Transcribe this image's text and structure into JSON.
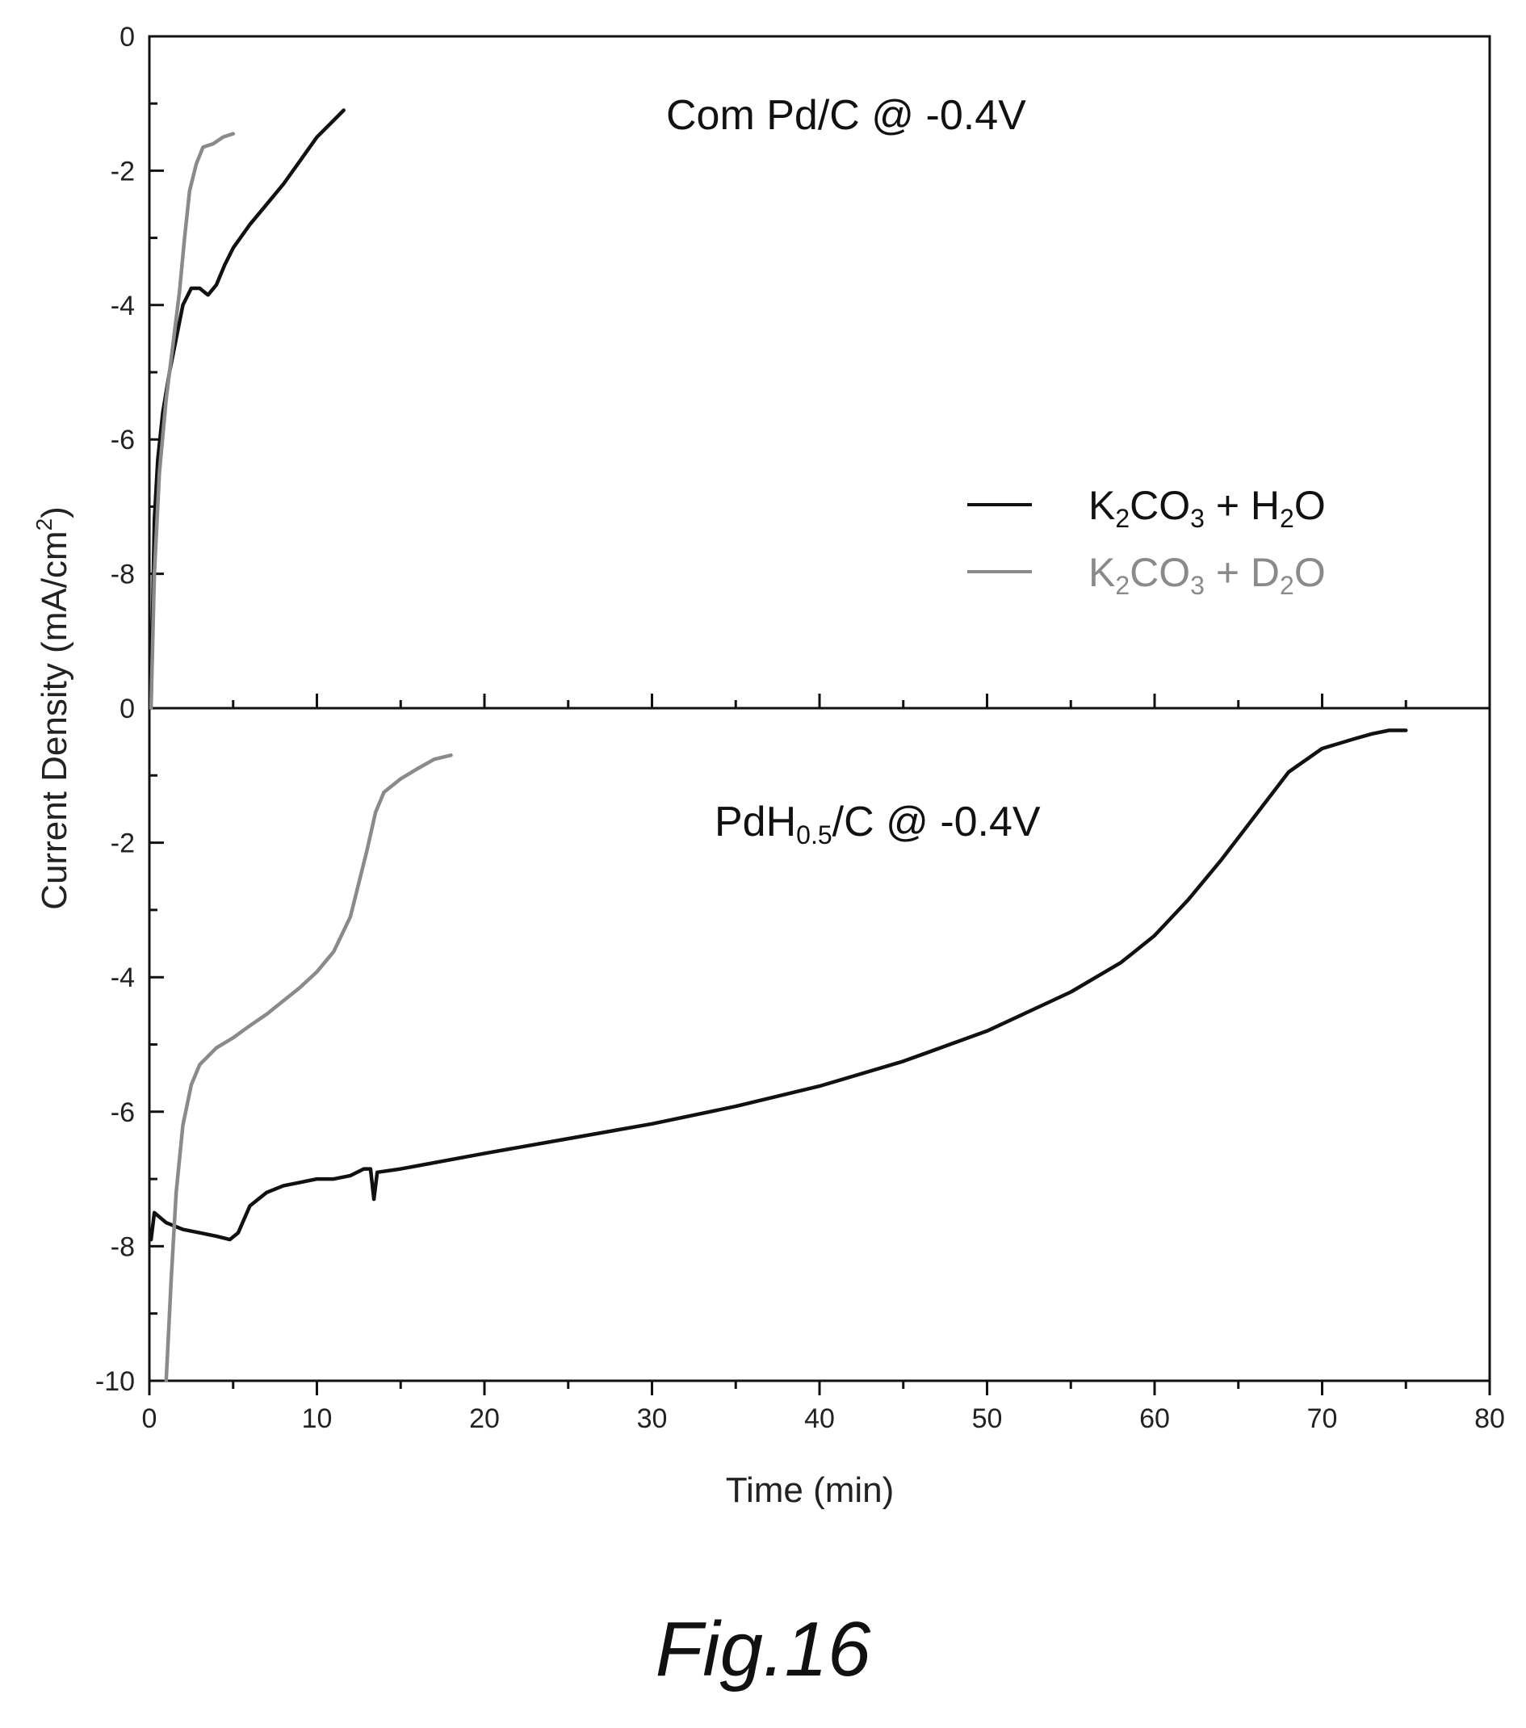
{
  "caption": "Fig.16",
  "chart_data": [
    {
      "type": "line",
      "panel": "top",
      "annotation": "Com Pd/C @ -0.4V",
      "xlim": [
        0,
        80
      ],
      "ylim": [
        -10,
        0
      ],
      "yticks": [
        0,
        -2,
        -4,
        -6,
        -8
      ],
      "legend": {
        "placement": "right",
        "entries": [
          {
            "base": "K",
            "sub1": "2",
            "mid": "CO",
            "sub2": "3",
            "tail": " + H",
            "sub3": "2",
            "end": "O",
            "color": "#111111"
          },
          {
            "base": "K",
            "sub1": "2",
            "mid": "CO",
            "sub2": "3",
            "tail": " + D",
            "sub3": "2",
            "end": "O",
            "color": "#8a8a8a"
          }
        ]
      },
      "series": [
        {
          "color": "#111111",
          "points": [
            [
              0.1,
              -9.9
            ],
            [
              0.2,
              -8.5
            ],
            [
              0.3,
              -7.2
            ],
            [
              0.5,
              -6.3
            ],
            [
              0.8,
              -5.6
            ],
            [
              1.2,
              -5.0
            ],
            [
              1.6,
              -4.5
            ],
            [
              2.0,
              -4.0
            ],
            [
              2.5,
              -3.75
            ],
            [
              3.0,
              -3.75
            ],
            [
              3.5,
              -3.85
            ],
            [
              4.0,
              -3.7
            ],
            [
              4.5,
              -3.4
            ],
            [
              5.0,
              -3.15
            ],
            [
              6.0,
              -2.8
            ],
            [
              7.0,
              -2.5
            ],
            [
              8.0,
              -2.2
            ],
            [
              9.0,
              -1.85
            ],
            [
              10.0,
              -1.5
            ],
            [
              11.0,
              -1.25
            ],
            [
              11.6,
              -1.1
            ]
          ]
        },
        {
          "color": "#8a8a8a",
          "points": [
            [
              0.1,
              -10.0
            ],
            [
              0.3,
              -8.0
            ],
            [
              0.6,
              -6.5
            ],
            [
              1.0,
              -5.4
            ],
            [
              1.4,
              -4.6
            ],
            [
              1.8,
              -3.8
            ],
            [
              2.1,
              -3.0
            ],
            [
              2.4,
              -2.3
            ],
            [
              2.8,
              -1.9
            ],
            [
              3.2,
              -1.65
            ],
            [
              3.8,
              -1.6
            ],
            [
              4.4,
              -1.5
            ],
            [
              5.0,
              -1.45
            ]
          ]
        }
      ]
    },
    {
      "type": "line",
      "panel": "bottom",
      "annotation": {
        "pre": "PdH",
        "sub": "0.5",
        "post": "/C @ -0.4V"
      },
      "xlabel": "Time (min)",
      "ylabel_pre": "Current Density (mA/cm",
      "ylabel_sup": "2",
      "ylabel_post": ")",
      "xlim": [
        0,
        80
      ],
      "xticks": [
        0,
        10,
        20,
        30,
        40,
        50,
        60,
        70,
        80
      ],
      "ylim": [
        -10,
        0
      ],
      "yticks": [
        0,
        -2,
        -4,
        -6,
        -8,
        -10
      ],
      "series": [
        {
          "color": "#111111",
          "points": [
            [
              0.1,
              -7.9
            ],
            [
              0.3,
              -7.5
            ],
            [
              1.0,
              -7.65
            ],
            [
              2.0,
              -7.75
            ],
            [
              3.0,
              -7.8
            ],
            [
              4.0,
              -7.85
            ],
            [
              4.8,
              -7.9
            ],
            [
              5.3,
              -7.8
            ],
            [
              6.0,
              -7.4
            ],
            [
              7.0,
              -7.2
            ],
            [
              8.0,
              -7.1
            ],
            [
              9.0,
              -7.05
            ],
            [
              10.0,
              -7.0
            ],
            [
              11.0,
              -7.0
            ],
            [
              12.0,
              -6.95
            ],
            [
              12.8,
              -6.85
            ],
            [
              13.2,
              -6.85
            ],
            [
              13.4,
              -7.3
            ],
            [
              13.6,
              -6.9
            ],
            [
              15.0,
              -6.85
            ],
            [
              20.0,
              -6.62
            ],
            [
              25.0,
              -6.4
            ],
            [
              30.0,
              -6.18
            ],
            [
              35.0,
              -5.92
            ],
            [
              40.0,
              -5.62
            ],
            [
              45.0,
              -5.25
            ],
            [
              50.0,
              -4.8
            ],
            [
              55.0,
              -4.22
            ],
            [
              58.0,
              -3.78
            ],
            [
              60.0,
              -3.38
            ],
            [
              62.0,
              -2.85
            ],
            [
              64.0,
              -2.25
            ],
            [
              66.0,
              -1.6
            ],
            [
              68.0,
              -0.95
            ],
            [
              70.0,
              -0.6
            ],
            [
              72.0,
              -0.45
            ],
            [
              73.0,
              -0.38
            ],
            [
              74.0,
              -0.33
            ],
            [
              75.0,
              -0.33
            ]
          ]
        },
        {
          "color": "#8a8a8a",
          "points": [
            [
              1.0,
              -10.0
            ],
            [
              1.3,
              -8.5
            ],
            [
              1.6,
              -7.2
            ],
            [
              2.0,
              -6.2
            ],
            [
              2.5,
              -5.6
            ],
            [
              3.0,
              -5.3
            ],
            [
              4.0,
              -5.05
            ],
            [
              5.0,
              -4.9
            ],
            [
              6.0,
              -4.72
            ],
            [
              7.0,
              -4.55
            ],
            [
              8.0,
              -4.35
            ],
            [
              9.0,
              -4.15
            ],
            [
              10.0,
              -3.92
            ],
            [
              11.0,
              -3.62
            ],
            [
              12.0,
              -3.1
            ],
            [
              12.5,
              -2.6
            ],
            [
              13.0,
              -2.1
            ],
            [
              13.5,
              -1.55
            ],
            [
              14.0,
              -1.25
            ],
            [
              15.0,
              -1.05
            ],
            [
              16.0,
              -0.9
            ],
            [
              17.0,
              -0.76
            ],
            [
              18.0,
              -0.7
            ]
          ]
        }
      ]
    }
  ]
}
